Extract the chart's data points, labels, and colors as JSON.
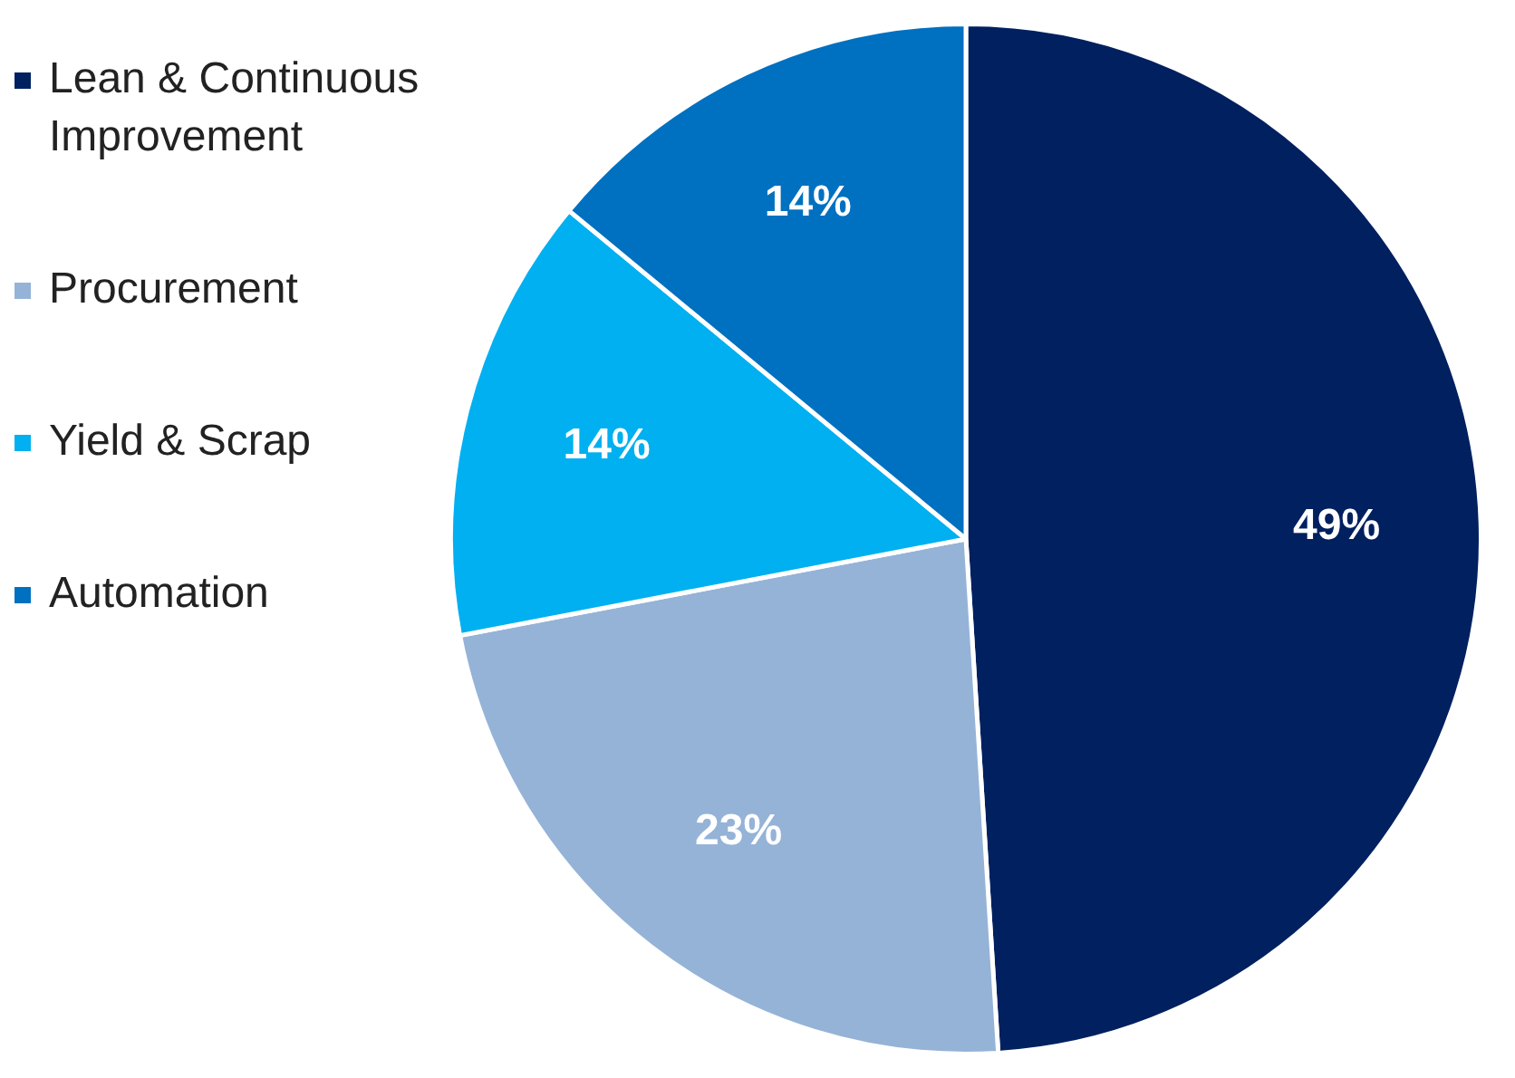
{
  "chart_data": {
    "type": "pie",
    "categories": [
      "Lean & Continuous Improvement",
      "Procurement",
      "Yield & Scrap",
      "Automation"
    ],
    "values": [
      49,
      23,
      14,
      14
    ],
    "value_labels": [
      "49%",
      "23%",
      "14%",
      "14%"
    ],
    "colors": [
      "#002060",
      "#95b3d7",
      "#00b0f0",
      "#0070c0"
    ],
    "legend": "top left"
  }
}
